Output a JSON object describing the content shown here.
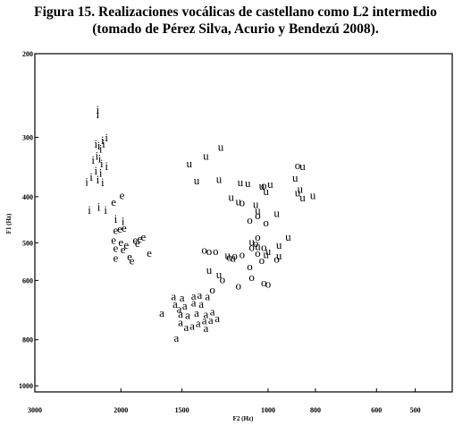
{
  "figure": {
    "title_line1": "Figura 15. Realizaciones vocálicas de castellano como L2 intermedio",
    "title_line2": "(tomado de Pérez Silva, Acurio y Bendezú 2008)."
  },
  "chart_data": {
    "type": "scatter",
    "title": "Figura 15. Realizaciones vocálicas de castellano como L2 intermedio (tomado de Pérez Silva, Acurio y Bendezú 2008).",
    "xlabel": "F2 (Hz)",
    "ylabel": "F1 (Hz)",
    "x_scale": "log",
    "y_scale": "log",
    "x_inverted": true,
    "y_inverted": true,
    "xlim": [
      3000,
      420
    ],
    "ylim": [
      200,
      1030
    ],
    "x_ticks": [
      3000,
      2000,
      1500,
      1000,
      800,
      600,
      500
    ],
    "y_ticks": [
      200,
      300,
      400,
      500,
      600,
      800,
      1000
    ],
    "grid": false,
    "series": [
      {
        "name": "i",
        "points": [
          [
            2230,
            262
          ],
          [
            2230,
            268
          ],
          [
            2180,
            304
          ],
          [
            2140,
            300
          ],
          [
            2250,
            309
          ],
          [
            2220,
            312
          ],
          [
            2200,
            317
          ],
          [
            2170,
            309
          ],
          [
            2240,
            328
          ],
          [
            2210,
            332
          ],
          [
            2280,
            334
          ],
          [
            2190,
            340
          ],
          [
            2140,
            345
          ],
          [
            2250,
            352
          ],
          [
            2200,
            356
          ],
          [
            2300,
            363
          ],
          [
            2230,
            368
          ],
          [
            2180,
            373
          ],
          [
            2350,
            372
          ],
          [
            2220,
            420
          ],
          [
            2320,
            426
          ],
          [
            2150,
            426
          ],
          [
            2050,
            445
          ],
          [
            1980,
            450
          ]
        ]
      },
      {
        "name": "e",
        "points": [
          [
            2070,
            410
          ],
          [
            1990,
            397
          ],
          [
            2050,
            470
          ],
          [
            2010,
            467
          ],
          [
            1970,
            465
          ],
          [
            2070,
            493
          ],
          [
            2000,
            498
          ],
          [
            1950,
            505
          ],
          [
            2050,
            512
          ],
          [
            1980,
            516
          ],
          [
            2050,
            537
          ],
          [
            1920,
            534
          ],
          [
            1850,
            500
          ],
          [
            1870,
            493
          ],
          [
            1830,
            490
          ],
          [
            1800,
            485
          ],
          [
            1900,
            545
          ],
          [
            1750,
            525
          ]
        ]
      },
      {
        "name": "a",
        "points": [
          [
            1560,
            648
          ],
          [
            1500,
            652
          ],
          [
            1420,
            646
          ],
          [
            1550,
            672
          ],
          [
            1520,
            688
          ],
          [
            1480,
            678
          ],
          [
            1420,
            668
          ],
          [
            1380,
            643
          ],
          [
            1370,
            672
          ],
          [
            1330,
            647
          ],
          [
            1510,
            705
          ],
          [
            1460,
            710
          ],
          [
            1400,
            702
          ],
          [
            1340,
            706
          ],
          [
            1300,
            697
          ],
          [
            1650,
            702
          ],
          [
            1510,
            735
          ],
          [
            1430,
            748
          ],
          [
            1390,
            737
          ],
          [
            1350,
            728
          ],
          [
            1310,
            727
          ],
          [
            1270,
            720
          ],
          [
            1340,
            755
          ],
          [
            1470,
            752
          ],
          [
            1540,
            793
          ]
        ]
      },
      {
        "name": "o",
        "points": [
          [
            1350,
            517
          ],
          [
            1320,
            520
          ],
          [
            1280,
            520
          ],
          [
            1200,
            535
          ],
          [
            1170,
            532
          ],
          [
            1130,
            528
          ],
          [
            1080,
            510
          ],
          [
            1060,
            500
          ],
          [
            1020,
            510
          ],
          [
            1050,
            525
          ],
          [
            1030,
            543
          ],
          [
            1090,
            560
          ],
          [
            1300,
            627
          ],
          [
            1150,
            615
          ],
          [
            960,
            540
          ],
          [
            1000,
            610
          ],
          [
            1020,
            605
          ],
          [
            1080,
            590
          ],
          [
            1010,
            453
          ],
          [
            1050,
            437
          ],
          [
            1090,
            447
          ],
          [
            1050,
            485
          ],
          [
            1130,
            411
          ],
          [
            1020,
            378
          ],
          [
            1240,
            596
          ],
          [
            870,
            343
          ]
        ]
      },
      {
        "name": "u",
        "points": [
          [
            1250,
            314
          ],
          [
            1450,
            340
          ],
          [
            1340,
            328
          ],
          [
            1400,
            369
          ],
          [
            1260,
            367
          ],
          [
            1140,
            373
          ],
          [
            1100,
            374
          ],
          [
            1190,
            400
          ],
          [
            1150,
            409
          ],
          [
            1060,
            414
          ],
          [
            1030,
            379
          ],
          [
            1010,
            389
          ],
          [
            990,
            376
          ],
          [
            1050,
            427
          ],
          [
            960,
            433
          ],
          [
            870,
            392
          ],
          [
            850,
            401
          ],
          [
            810,
            397
          ],
          [
            860,
            385
          ],
          [
            910,
            485
          ],
          [
            950,
            505
          ],
          [
            1050,
            508
          ],
          [
            1000,
            520
          ],
          [
            1010,
            528
          ],
          [
            1080,
            497
          ],
          [
            950,
            532
          ],
          [
            1180,
            537
          ],
          [
            1210,
            531
          ],
          [
            1320,
            570
          ],
          [
            1260,
            582
          ],
          [
            850,
            345
          ],
          [
            880,
            365
          ]
        ]
      }
    ]
  }
}
